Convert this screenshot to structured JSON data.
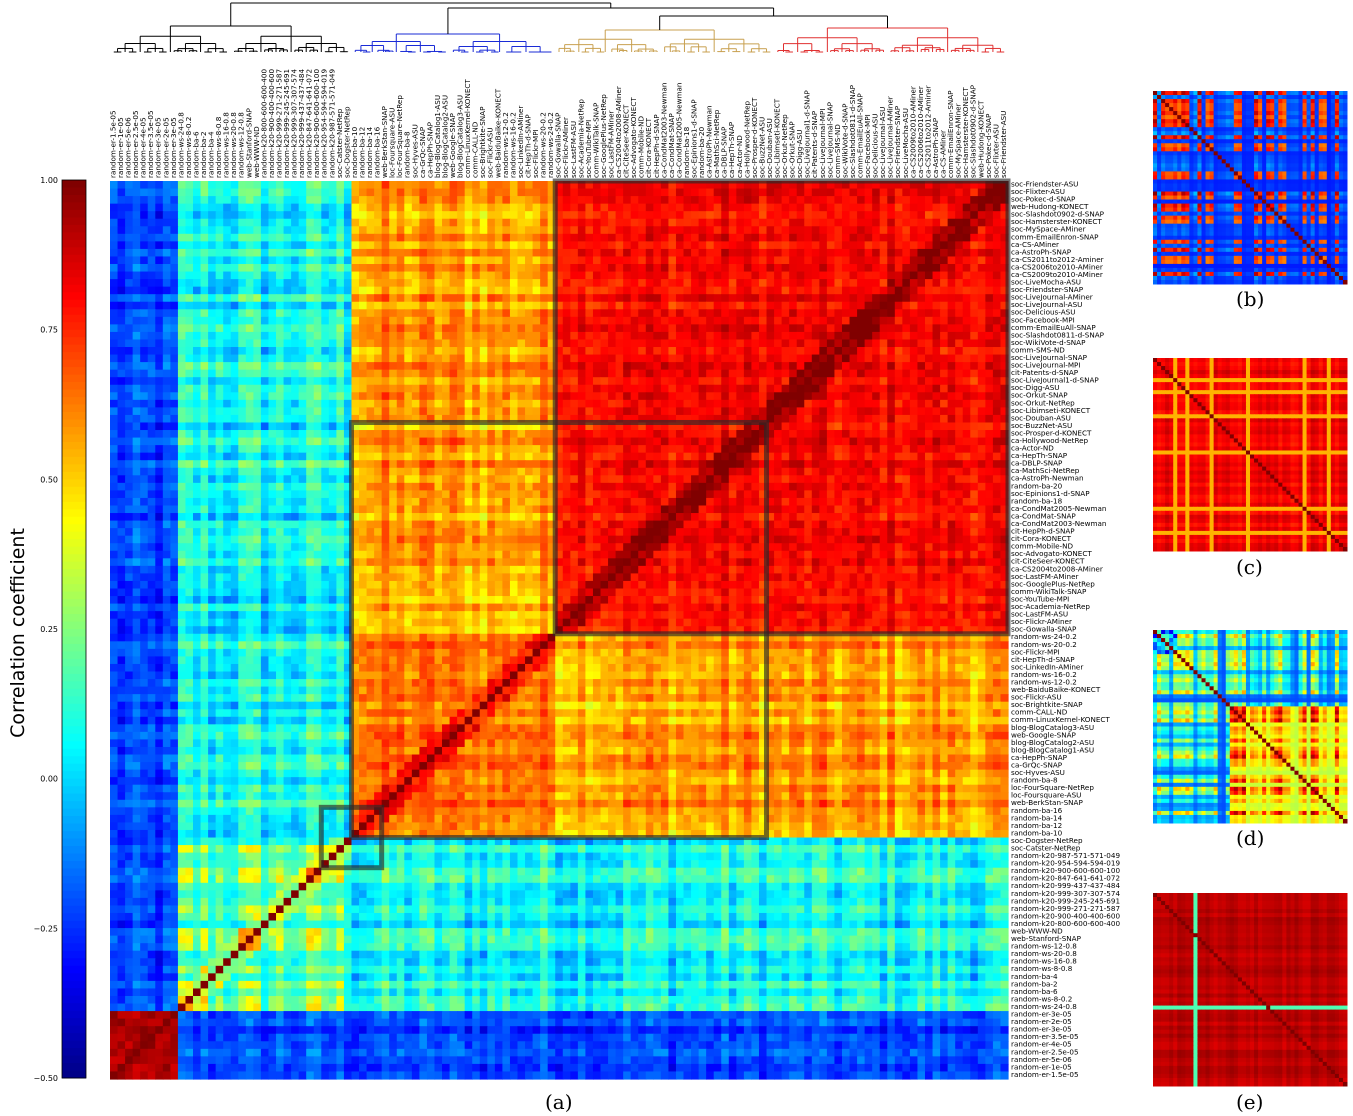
{
  "chart_data": [
    {
      "type": "heatmap",
      "panel": "(a)",
      "colorbar": {
        "label": "Correlation coefficient",
        "range": [
          -0.5,
          1.0
        ],
        "ticks": [
          "1.00",
          "0.75",
          "0.50",
          "0.25",
          "0.00",
          "−0.25",
          "−0.50"
        ],
        "tick_values": [
          1.0,
          0.75,
          0.5,
          0.25,
          0.0,
          -0.25,
          -0.5
        ],
        "colormap": "jet"
      },
      "row_labels": [
        "soc-Friendster-ASU",
        "soc-Flixter-ASU",
        "soc-Pokec-d-SNAP",
        "web-Hudong-KONECT",
        "soc-Slashdot0902-d-SNAP",
        "soc-Hamsterster-KONECT",
        "soc-MySpace-AMiner",
        "comm-EmailEnron-SNAP",
        "ca-CS-AMiner",
        "ca-AstroPh-SNAP",
        "ca-CS2011to2012-Aminer",
        "ca-CS2006to2010-AMiner",
        "ca-CS2009to2010-AMiner",
        "soc-LiveMocha-ASU",
        "soc-Friendster-SNAP",
        "soc-LiveJournal-AMiner",
        "soc-LiveJournal-ASU",
        "soc-Delicious-ASU",
        "soc-Facebook-MPI",
        "comm-EmailEuAll-SNAP",
        "soc-Slashdot0811-d-SNAP",
        "soc-WikiVote-d-SNAP",
        "comm-SMS-ND",
        "soc-LiveJournal-SNAP",
        "soc-LiveJournal-MPI",
        "cit-Patents-d-SNAP",
        "soc-LiveJournal1-d-SNAP",
        "soc-Digg-ASU",
        "soc-Orkut-SNAP",
        "soc-Orkut-NetRep",
        "soc-Libimseti-KONECT",
        "soc-Douban-ASU",
        "soc-BuzzNet-ASU",
        "soc-Prosper-d-KONECT",
        "ca-Hollywood-NetRep",
        "ca-Actor-ND",
        "ca-HepTh-SNAP",
        "ca-DBLP-SNAP",
        "ca-MathSci-NetRep",
        "ca-AstroPh-Newman",
        "random-ba-20",
        "soc-Epinions1-d-SNAP",
        "random-ba-18",
        "ca-CondMat2005-Newman",
        "ca-CondMat-SNAP",
        "ca-CondMat2003-Newman",
        "cit-HepPh-d-SNAP",
        "cit-Cora-KONECT",
        "comm-Mobile-ND",
        "soc-Advogato-KONECT",
        "cit-CiteSeer-KONECT",
        "ca-CS2004to2008-AMiner",
        "soc-LastFM-AMiner",
        "soc-GooglePlus-NetRep",
        "comm-WikiTalk-SNAP",
        "soc-YouTube-MPI",
        "soc-Academia-NetRep",
        "soc-LastFM-ASU",
        "soc-Flickr-AMiner",
        "soc-Gowalla-SNAP",
        "random-ws-24-0.2",
        "random-ws-20-0.2",
        "soc-Flickr-MPI",
        "cit-HepTh-d-SNAP",
        "soc-LinkedIn-AMiner",
        "random-ws-16-0.2",
        "random-ws-12-0.2",
        "web-BaiduBaike-KONECT",
        "soc-Flickr-ASU",
        "soc-Brightkite-SNAP",
        "comm-CALL-ND",
        "comm-LinuxKernel-KONECT",
        "blog-BlogCatalog3-ASU",
        "web-Google-SNAP",
        "blog-BlogCatalog2-ASU",
        "blog-BlogCatalog1-ASU",
        "ca-HepPh-SNAP",
        "ca-GrQc-SNAP",
        "soc-Hyves-ASU",
        "random-ba-8",
        "loc-FourSquare-NetRep",
        "loc-Foursquare-ASU",
        "web-BerkStan-SNAP",
        "random-ba-16",
        "random-ba-14",
        "random-ba-12",
        "random-ba-10",
        "soc-Dogster-NetRep",
        "soc-Catster-NetRep",
        "random-k20-987-571-571-049",
        "random-k20-954-594-594-019",
        "random-k20-900-600-600-100",
        "random-k20-847-641-641-072",
        "random-k20-999-437-437-484",
        "random-k20-999-307-307-574",
        "random-k20-999-245-245-691",
        "random-k20-999-271-271-587",
        "random-k20-900-400-400-600",
        "random-k20-800-600-600-400",
        "web-WWW-ND",
        "web-Stanford-SNAP",
        "random-ws-12-0.8",
        "random-ws-20-0.8",
        "random-ws-16-0.8",
        "random-ws-8-0.8",
        "random-ba-4",
        "random-ba-2",
        "random-ba-6",
        "random-ws-8-0.2",
        "random-ws-24-0.8",
        "random-er-3e-05",
        "random-er-2e-05",
        "random-er-3e-05",
        "random-er-3.5e-05",
        "random-er-4e-05",
        "random-er-2.5e-05",
        "random-er-5e-06",
        "random-er-1e-05",
        "random-er-1.5e-05"
      ],
      "col_labels": [
        "random-er-1.5e-05",
        "random-er-1e-05",
        "random-er-5e-06",
        "random-er-2.5e-05",
        "random-er-4e-05",
        "random-er-3.5e-05",
        "random-er-3e-05",
        "random-er-2e-05",
        "random-er-3e-05",
        "random-ws-24-0.8",
        "random-ws-8-0.2",
        "random-ba-6",
        "random-ba-2",
        "random-ba-4",
        "random-ws-8-0.8",
        "random-ws-16-0.8",
        "random-ws-20-0.8",
        "random-ws-12-0.8",
        "web-Stanford-SNAP",
        "web-WWW-ND",
        "random-k20-800-600-600-400",
        "random-k20-900-400-400-600",
        "random-k20-999-271-271-587",
        "random-k20-999-245-245-691",
        "random-k20-999-307-307-574",
        "random-k20-999-437-437-484",
        "random-k20-847-641-641-072",
        "random-k20-900-600-600-100",
        "random-k20-954-594-594-019",
        "random-k20-987-571-571-049",
        "soc-Catster-NetRep",
        "soc-Dogster-NetRep",
        "random-ba-10",
        "random-ba-12",
        "random-ba-14",
        "random-ba-16",
        "web-BerkStan-SNAP",
        "loc-Foursquare-ASU",
        "loc-FourSquare-NetRep",
        "random-ba-8",
        "soc-Hyves-ASU",
        "ca-GrQc-SNAP",
        "ca-HepPh-SNAP",
        "blog-BlogCatalog1-ASU",
        "blog-BlogCatalog2-ASU",
        "web-Google-SNAP",
        "blog-BlogCatalog3-ASU",
        "comm-LinuxKernel-KONECT",
        "comm-CALL-ND",
        "soc-Brightkite-SNAP",
        "soc-Flickr-ASU",
        "web-BaiduBaike-KONECT",
        "random-ws-12-0.2",
        "random-ws-16-0.2",
        "soc-LinkedIn-AMiner",
        "cit-HepTh-d-SNAP",
        "soc-Flickr-MPI",
        "random-ws-20-0.2",
        "random-ws-24-0.2",
        "soc-Gowalla-SNAP",
        "soc-Flickr-AMiner",
        "soc-LastFM-ASU",
        "soc-Academia-NetRep",
        "soc-YouTube-MPI",
        "comm-WikiTalk-SNAP",
        "soc-GooglePlus-NetRep",
        "soc-LastFM-AMiner",
        "ca-CS2004to2008-AMiner",
        "cit-CiteSeer-KONECT",
        "soc-Advogato-KONECT",
        "comm-Mobile-ND",
        "cit-Cora-KONECT",
        "cit-HepPh-d-SNAP",
        "ca-CondMat2003-Newman",
        "ca-CondMat-SNAP",
        "ca-CondMat2005-Newman",
        "random-ba-18",
        "soc-Epinions1-d-SNAP",
        "random-ba-20",
        "ca-AstroPh-Newman",
        "ca-MathSci-NetRep",
        "ca-DBLP-SNAP",
        "ca-HepTh-SNAP",
        "ca-Actor-ND",
        "ca-Hollywood-NetRep",
        "soc-Prosper-d-KONECT",
        "soc-BuzzNet-ASU",
        "soc-Douban-ASU",
        "soc-Libimseti-KONECT",
        "soc-Orkut-NetRep",
        "soc-Orkut-SNAP",
        "soc-Digg-ASU",
        "soc-LiveJournal1-d-SNAP",
        "cit-Patents-d-SNAP",
        "soc-LiveJournal-MPI",
        "soc-LiveJournal-SNAP",
        "comm-SMS-ND",
        "soc-WikiVote-d-SNAP",
        "soc-Slashdot0811-d-SNAP",
        "comm-EmailEuAll-SNAP",
        "soc-Facebook-MPI",
        "soc-Delicious-ASU",
        "soc-LiveJournal-ASU",
        "soc-LiveJournal-AMiner",
        "soc-Friendster-SNAP",
        "soc-LiveMocha-ASU",
        "ca-CS2009to2010-AMiner",
        "ca-CS2006to2010-AMiner",
        "ca-CS2011to2012-Aminer",
        "ca-AstroPh-SNAP",
        "ca-CS-AMiner",
        "comm-EmailEnron-SNAP",
        "soc-MySpace-AMiner",
        "soc-Hamsterster-KONECT",
        "soc-Slashdot0902-d-SNAP",
        "web-Hudong-KONECT",
        "soc-Pokec-d-SNAP",
        "soc-Flixter-ASU",
        "soc-Friendster-ASU"
      ],
      "dendrogram_colors": [
        "#000000",
        "#1a2bd6",
        "#c8a050",
        "#e03030"
      ],
      "highlight_blocks": 3
    },
    {
      "type": "heatmap",
      "panel": "(b)"
    },
    {
      "type": "heatmap",
      "panel": "(c)"
    },
    {
      "type": "heatmap",
      "panel": "(d)"
    },
    {
      "type": "heatmap",
      "panel": "(e)"
    }
  ]
}
